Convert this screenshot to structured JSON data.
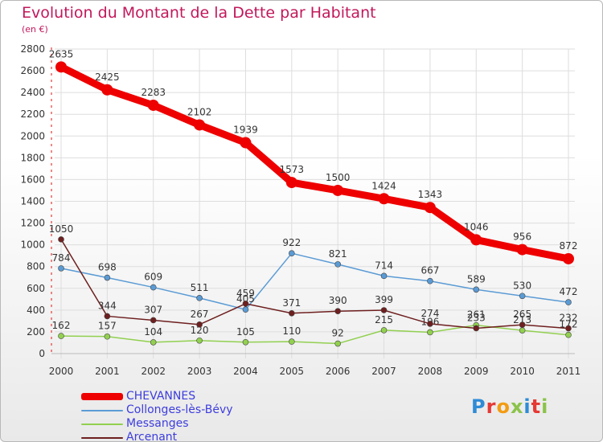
{
  "title": "Evolution du Montant de la Dette par Habitant",
  "subtitle": "(en €)",
  "logo": {
    "text": "Proxiti",
    "colors": [
      "#2e8bd6",
      "#e53935",
      "#f39c12",
      "#8bc34a",
      "#2e8bd6",
      "#e53935",
      "#8bc34a"
    ]
  },
  "chart_data": {
    "type": "line",
    "title": "Evolution du Montant de la Dette par Habitant",
    "subtitle": "(en €)",
    "x": [
      "2000",
      "2001",
      "2002",
      "2003",
      "2004",
      "2005",
      "2006",
      "2007",
      "2008",
      "2009",
      "2010",
      "2011"
    ],
    "ylim": [
      0,
      2800
    ],
    "yticks": [
      0,
      200,
      400,
      600,
      800,
      1000,
      1200,
      1400,
      1600,
      1800,
      2000,
      2200,
      2400,
      2600,
      2800
    ],
    "grid": true,
    "legend_position": "bottom-left",
    "series": [
      {
        "name": "CHEVANNES",
        "color": "#ee0000",
        "label_color": "#3d3dde",
        "highlight": true,
        "values": [
          2635,
          2425,
          2283,
          2102,
          1939,
          1573,
          1500,
          1424,
          1343,
          1046,
          956,
          872
        ]
      },
      {
        "name": "Collonges-lès-Bévy",
        "color": "#5b9bd5",
        "label_color": "#3d3dde",
        "values": [
          784,
          698,
          609,
          511,
          405,
          922,
          821,
          714,
          667,
          589,
          530,
          472
        ]
      },
      {
        "name": "Messanges",
        "color": "#92d050",
        "label_color": "#3d3dde",
        "values": [
          162,
          157,
          104,
          120,
          105,
          110,
          92,
          215,
          196,
          261,
          213,
          172
        ]
      },
      {
        "name": "Arcenant",
        "color": "#6e1f1f",
        "label_color": "#3d3dde",
        "values": [
          1050,
          344,
          307,
          267,
          459,
          371,
          390,
          399,
          274,
          233,
          265,
          232
        ]
      }
    ]
  }
}
